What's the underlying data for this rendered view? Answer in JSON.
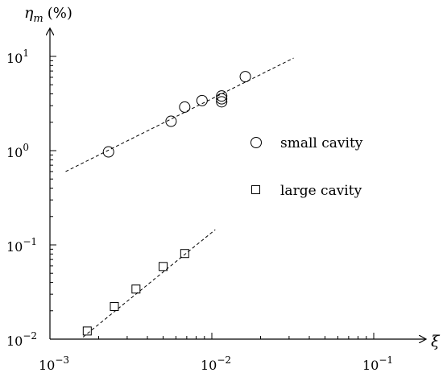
{
  "chart_data": {
    "type": "scatter",
    "title": "",
    "xlabel": "ξ",
    "ylabel": "η",
    "ylabel_subscript": "m",
    "ylabel_unit": "(%)",
    "x_scale": "log",
    "y_scale": "log",
    "xlim": [
      0.001,
      0.2
    ],
    "ylim": [
      0.01,
      15
    ],
    "grid": false,
    "legend_placement": "right",
    "x_ticks": [
      {
        "value": 0.001,
        "base": "10",
        "exp": "−3"
      },
      {
        "value": 0.01,
        "base": "10",
        "exp": "−2"
      },
      {
        "value": 0.1,
        "base": "10",
        "exp": "−1"
      }
    ],
    "y_ticks": [
      {
        "value": 0.01,
        "base": "10",
        "exp": "−2"
      },
      {
        "value": 0.1,
        "base": "10",
        "exp": "−1"
      },
      {
        "value": 1,
        "base": "10",
        "exp": "0"
      },
      {
        "value": 10,
        "base": "10",
        "exp": "1"
      }
    ],
    "series": [
      {
        "name": "small cavity",
        "marker": "circle",
        "color": "#000000",
        "points": [
          {
            "x": 0.0023,
            "y": 0.97
          },
          {
            "x": 0.0056,
            "y": 2.05
          },
          {
            "x": 0.0068,
            "y": 2.9
          },
          {
            "x": 0.0087,
            "y": 3.4
          },
          {
            "x": 0.0115,
            "y": 3.3
          },
          {
            "x": 0.0115,
            "y": 3.55
          },
          {
            "x": 0.0115,
            "y": 3.8
          },
          {
            "x": 0.0161,
            "y": 6.1
          }
        ],
        "fit": {
          "x": [
            0.00125,
            0.032
          ],
          "y": [
            0.6,
            9.6
          ]
        }
      },
      {
        "name": "large cavity",
        "marker": "square",
        "color": "#000000",
        "points": [
          {
            "x": 0.0017,
            "y": 0.0122
          },
          {
            "x": 0.0025,
            "y": 0.0222
          },
          {
            "x": 0.0034,
            "y": 0.034
          },
          {
            "x": 0.005,
            "y": 0.059
          },
          {
            "x": 0.0068,
            "y": 0.081
          }
        ],
        "fit": {
          "x": [
            0.0016,
            0.0105
          ],
          "y": [
            0.0105,
            0.145
          ]
        }
      }
    ],
    "legend": [
      {
        "label": "small cavity",
        "marker": "circle"
      },
      {
        "label": "large cavity",
        "marker": "square"
      }
    ]
  }
}
